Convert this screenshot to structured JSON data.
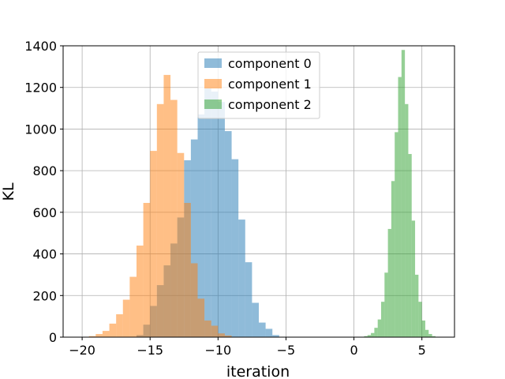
{
  "chart_data": {
    "type": "histogram",
    "title": "",
    "xlabel": "iteration",
    "ylabel": "KL",
    "xlim": [
      -21.4,
      7.4
    ],
    "ylim": [
      0,
      1400
    ],
    "grid": true,
    "legend_position": "top-center",
    "x_ticks": [
      -20,
      -15,
      -10,
      -5,
      0,
      5
    ],
    "x_tick_labels": [
      "−20",
      "−15",
      "−10",
      "−5",
      "0",
      "5"
    ],
    "y_ticks": [
      0,
      200,
      400,
      600,
      800,
      1000,
      1200,
      1400
    ],
    "y_tick_labels": [
      "0",
      "200",
      "400",
      "600",
      "800",
      "1000",
      "1200",
      "1400"
    ],
    "series": [
      {
        "name": "component 0",
        "color": "#1f77b4",
        "alpha": 0.5,
        "bin_edges": [
          -16.0,
          -15.5,
          -15.0,
          -14.5,
          -14.0,
          -13.5,
          -13.0,
          -12.5,
          -12.0,
          -11.5,
          -11.0,
          -10.5,
          -10.0,
          -9.5,
          -9.0,
          -8.5,
          -8.0,
          -7.5,
          -7.0,
          -6.5,
          -6.0,
          -5.5
        ],
        "counts": [
          10,
          60,
          150,
          250,
          345,
          450,
          575,
          850,
          950,
          1070,
          1195,
          1180,
          1130,
          990,
          855,
          565,
          360,
          165,
          70,
          40,
          10
        ]
      },
      {
        "name": "component 1",
        "color": "#ff7f0e",
        "alpha": 0.5,
        "bin_edges": [
          -19.5,
          -19.0,
          -18.5,
          -18.0,
          -17.5,
          -17.0,
          -16.5,
          -16.0,
          -15.5,
          -15.0,
          -14.5,
          -14.0,
          -13.5,
          -13.0,
          -12.5,
          -12.0,
          -11.5,
          -11.0,
          -10.5,
          -10.0,
          -9.5,
          -9.0
        ],
        "counts": [
          5,
          15,
          30,
          65,
          110,
          180,
          290,
          440,
          645,
          895,
          1120,
          1260,
          1140,
          885,
          645,
          355,
          185,
          80,
          55,
          18,
          8
        ]
      },
      {
        "name": "component 2",
        "color": "#2ca02c",
        "alpha": 0.5,
        "bin_edges": [
          0.75,
          1.0,
          1.25,
          1.5,
          1.75,
          2.0,
          2.25,
          2.5,
          2.75,
          3.0,
          3.25,
          3.5,
          3.75,
          4.0,
          4.25,
          4.5,
          4.75,
          5.0,
          5.25,
          5.5,
          5.75,
          6.0
        ],
        "counts": [
          5,
          10,
          20,
          45,
          85,
          170,
          310,
          520,
          750,
          985,
          1250,
          1380,
          1120,
          880,
          560,
          300,
          170,
          80,
          35,
          15,
          5
        ]
      }
    ]
  }
}
